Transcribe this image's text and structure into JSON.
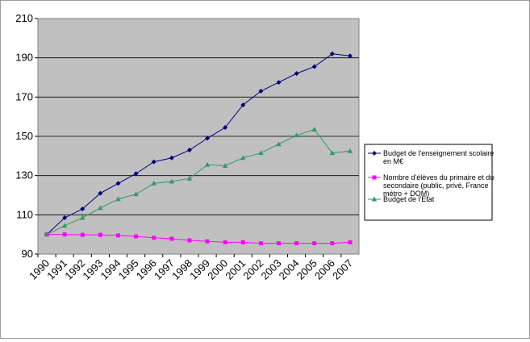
{
  "chart_data": {
    "type": "line",
    "x": [
      "1990",
      "1991",
      "1992",
      "1993",
      "1994",
      "1995",
      "1996",
      "1997",
      "1998",
      "1999",
      "2000",
      "2001",
      "2002",
      "2003",
      "2004",
      "2005",
      "2006",
      "2007"
    ],
    "ylim": [
      90,
      210
    ],
    "yticks": [
      90,
      110,
      130,
      150,
      170,
      190,
      210
    ],
    "grid": true,
    "legend": "right",
    "plot_background": "#c0c0c0",
    "series": [
      {
        "name_lines": [
          "Budget de l'enseignement scolaire",
          "en M€"
        ],
        "color": "#000080",
        "marker": "diamond",
        "values": [
          100,
          108.5,
          113,
          121,
          126,
          131,
          137,
          139,
          143,
          149,
          154.5,
          166,
          173,
          177.5,
          182,
          185.5,
          192,
          191
        ]
      },
      {
        "name_lines": [
          "Nombre d'élèves du primaire et du",
          "secondaire (public, privé, France",
          "métro + DOM)"
        ],
        "color": "#ff00ff",
        "marker": "square",
        "values": [
          100,
          100,
          99.8,
          99.8,
          99.5,
          99,
          98.3,
          97.8,
          97,
          96.5,
          96,
          96,
          95.5,
          95.5,
          95.5,
          95.5,
          95.5,
          96
        ]
      },
      {
        "name_lines": [
          "Budget de l'Etat"
        ],
        "color": "#339966",
        "marker": "triangle",
        "values": [
          100,
          104.5,
          108.5,
          113.5,
          118,
          120.5,
          126,
          127,
          128.5,
          135.5,
          135,
          139,
          141.5,
          146,
          150.5,
          153.5,
          141.5,
          142.5
        ]
      }
    ]
  }
}
